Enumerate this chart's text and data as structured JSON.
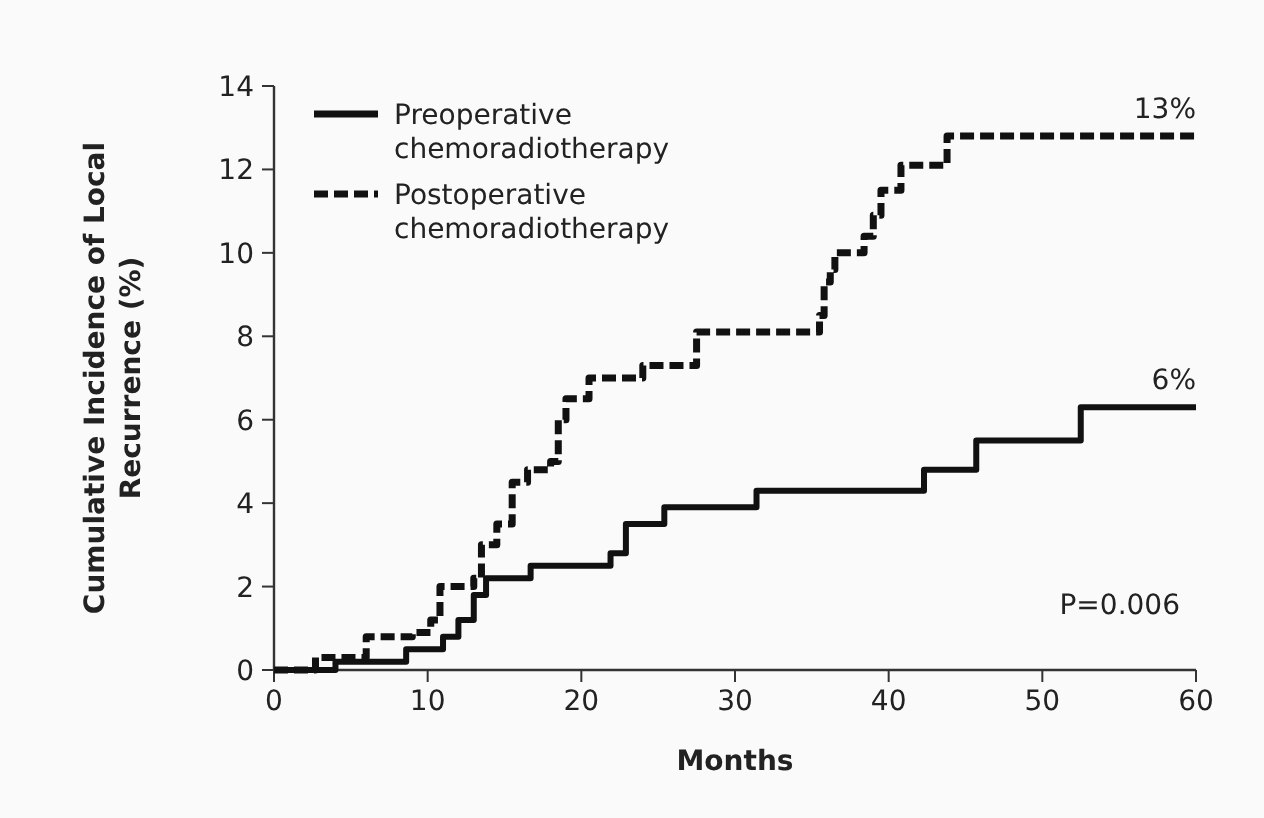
{
  "chart_data": {
    "type": "step",
    "xlabel": "Months",
    "ylabel": "Cumulative Incidence of Local Recurrence (%)",
    "xlim": [
      0,
      60
    ],
    "xticks": [
      0,
      10,
      20,
      30,
      40,
      50,
      60
    ],
    "ylim": [
      0,
      14
    ],
    "yticks": [
      0,
      2,
      4,
      6,
      8,
      10,
      12,
      14
    ],
    "grid": false,
    "legend": "top left",
    "marker": "none",
    "series": [
      {
        "name": "Preoperative chemoradiotherapy",
        "color": "#111111",
        "line_style": "solid",
        "x": [
          0,
          4,
          8.6,
          11,
          12,
          13,
          13.8,
          16.7,
          21.9,
          22.9,
          25.4,
          31.4,
          42.3,
          45.7,
          52.5,
          60
        ],
        "values": [
          0,
          0.2,
          0.5,
          0.8,
          1.2,
          1.8,
          2.2,
          2.5,
          2.8,
          3.5,
          3.9,
          4.3,
          4.8,
          5.5,
          6.3,
          6.3
        ]
      },
      {
        "name": "Postoperative chemoradiotherapy",
        "color": "#111111",
        "line_style": "dashed",
        "x": [
          0,
          2.7,
          6,
          9,
          10.2,
          10.8,
          13,
          13.5,
          14.5,
          15.5,
          16.5,
          18,
          18.5,
          19,
          20.5,
          24,
          27.5,
          35.5,
          35.8,
          36.2,
          36.5,
          38.4,
          39,
          39.5,
          40.8,
          43.8,
          60
        ],
        "values": [
          0,
          0.3,
          0.8,
          0.9,
          1.2,
          2,
          2.2,
          3,
          3.5,
          4.5,
          4.8,
          5,
          6,
          6.5,
          7,
          7.3,
          8.1,
          8.5,
          9.3,
          9.6,
          10,
          10.4,
          10.9,
          11.5,
          12.1,
          12.8,
          12.8
        ]
      }
    ],
    "annotations": [
      {
        "text": "13%",
        "x": 60,
        "y": 12.8
      },
      {
        "text": "6%",
        "x": 60,
        "y": 6.3
      },
      "P=0.006"
    ]
  }
}
